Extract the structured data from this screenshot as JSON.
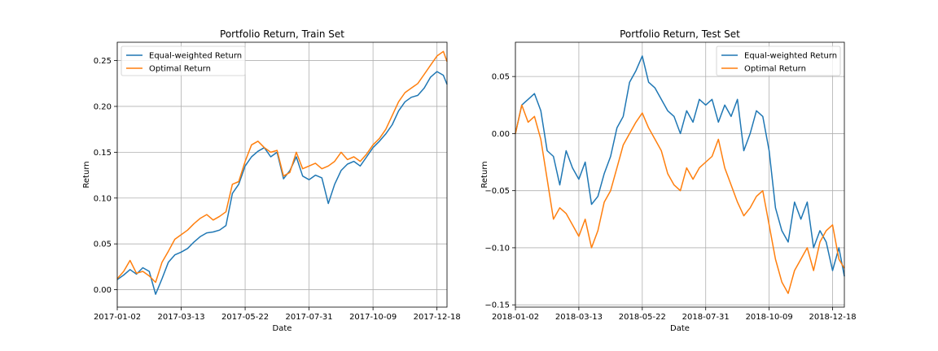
{
  "chart_data": [
    {
      "type": "line",
      "title": "Portfolio Return, Train Set",
      "xlabel": "Date",
      "ylabel": "Return",
      "xlim": [
        "2017-01-02",
        "2017-12-29"
      ],
      "ylim": [
        -0.019,
        0.27
      ],
      "x_ticks": [
        "2017-01-02",
        "2017-03-13",
        "2017-05-22",
        "2017-07-31",
        "2017-10-09",
        "2017-12-18"
      ],
      "y_ticks": [
        0.0,
        0.05,
        0.1,
        0.15,
        0.2,
        0.25
      ],
      "y_tick_labels": [
        "0.00",
        "0.05",
        "0.10",
        "0.15",
        "0.20",
        "0.25"
      ],
      "grid": true,
      "legend_position": "upper-left",
      "series": [
        {
          "name": "Equal-weighted Return",
          "color": "#1f77b4",
          "points": [
            [
              "2017-01-02",
              0.011
            ],
            [
              "2017-01-09",
              0.016
            ],
            [
              "2017-01-16",
              0.022
            ],
            [
              "2017-01-23",
              0.017
            ],
            [
              "2017-01-30",
              0.024
            ],
            [
              "2017-02-06",
              0.02
            ],
            [
              "2017-02-13",
              -0.005
            ],
            [
              "2017-02-20",
              0.012
            ],
            [
              "2017-02-27",
              0.03
            ],
            [
              "2017-03-06",
              0.038
            ],
            [
              "2017-03-13",
              0.041
            ],
            [
              "2017-03-20",
              0.045
            ],
            [
              "2017-03-27",
              0.052
            ],
            [
              "2017-04-03",
              0.058
            ],
            [
              "2017-04-10",
              0.062
            ],
            [
              "2017-04-17",
              0.063
            ],
            [
              "2017-04-24",
              0.065
            ],
            [
              "2017-05-01",
              0.07
            ],
            [
              "2017-05-08",
              0.105
            ],
            [
              "2017-05-15",
              0.115
            ],
            [
              "2017-05-22",
              0.135
            ],
            [
              "2017-05-29",
              0.145
            ],
            [
              "2017-06-05",
              0.151
            ],
            [
              "2017-06-12",
              0.155
            ],
            [
              "2017-06-19",
              0.145
            ],
            [
              "2017-06-26",
              0.15
            ],
            [
              "2017-07-03",
              0.121
            ],
            [
              "2017-07-10",
              0.13
            ],
            [
              "2017-07-17",
              0.145
            ],
            [
              "2017-07-24",
              0.124
            ],
            [
              "2017-07-31",
              0.12
            ],
            [
              "2017-08-07",
              0.125
            ],
            [
              "2017-08-14",
              0.122
            ],
            [
              "2017-08-21",
              0.094
            ],
            [
              "2017-08-28",
              0.115
            ],
            [
              "2017-09-04",
              0.13
            ],
            [
              "2017-09-11",
              0.137
            ],
            [
              "2017-09-18",
              0.14
            ],
            [
              "2017-09-25",
              0.135
            ],
            [
              "2017-10-02",
              0.145
            ],
            [
              "2017-10-09",
              0.155
            ],
            [
              "2017-10-16",
              0.162
            ],
            [
              "2017-10-23",
              0.17
            ],
            [
              "2017-10-30",
              0.18
            ],
            [
              "2017-11-06",
              0.195
            ],
            [
              "2017-11-13",
              0.205
            ],
            [
              "2017-11-20",
              0.21
            ],
            [
              "2017-11-27",
              0.212
            ],
            [
              "2017-12-04",
              0.22
            ],
            [
              "2017-12-11",
              0.232
            ],
            [
              "2017-12-18",
              0.238
            ],
            [
              "2017-12-25",
              0.234
            ],
            [
              "2017-12-29",
              0.224
            ]
          ]
        },
        {
          "name": "Optimal Return",
          "color": "#ff7f0e",
          "points": [
            [
              "2017-01-02",
              0.012
            ],
            [
              "2017-01-09",
              0.02
            ],
            [
              "2017-01-16",
              0.032
            ],
            [
              "2017-01-23",
              0.018
            ],
            [
              "2017-01-30",
              0.02
            ],
            [
              "2017-02-06",
              0.015
            ],
            [
              "2017-02-13",
              0.008
            ],
            [
              "2017-02-20",
              0.03
            ],
            [
              "2017-02-27",
              0.042
            ],
            [
              "2017-03-06",
              0.055
            ],
            [
              "2017-03-13",
              0.06
            ],
            [
              "2017-03-20",
              0.065
            ],
            [
              "2017-03-27",
              0.072
            ],
            [
              "2017-04-03",
              0.078
            ],
            [
              "2017-04-10",
              0.082
            ],
            [
              "2017-04-17",
              0.076
            ],
            [
              "2017-04-24",
              0.08
            ],
            [
              "2017-05-01",
              0.085
            ],
            [
              "2017-05-08",
              0.115
            ],
            [
              "2017-05-15",
              0.118
            ],
            [
              "2017-05-22",
              0.14
            ],
            [
              "2017-05-29",
              0.158
            ],
            [
              "2017-06-05",
              0.162
            ],
            [
              "2017-06-12",
              0.155
            ],
            [
              "2017-06-19",
              0.15
            ],
            [
              "2017-06-26",
              0.152
            ],
            [
              "2017-07-03",
              0.124
            ],
            [
              "2017-07-10",
              0.128
            ],
            [
              "2017-07-17",
              0.15
            ],
            [
              "2017-07-24",
              0.132
            ],
            [
              "2017-07-31",
              0.135
            ],
            [
              "2017-08-07",
              0.138
            ],
            [
              "2017-08-14",
              0.132
            ],
            [
              "2017-08-21",
              0.135
            ],
            [
              "2017-08-28",
              0.14
            ],
            [
              "2017-09-04",
              0.15
            ],
            [
              "2017-09-11",
              0.142
            ],
            [
              "2017-09-18",
              0.145
            ],
            [
              "2017-09-25",
              0.14
            ],
            [
              "2017-10-02",
              0.148
            ],
            [
              "2017-10-09",
              0.158
            ],
            [
              "2017-10-16",
              0.165
            ],
            [
              "2017-10-23",
              0.175
            ],
            [
              "2017-10-30",
              0.19
            ],
            [
              "2017-11-06",
              0.205
            ],
            [
              "2017-11-13",
              0.215
            ],
            [
              "2017-11-20",
              0.22
            ],
            [
              "2017-11-27",
              0.225
            ],
            [
              "2017-12-04",
              0.235
            ],
            [
              "2017-12-11",
              0.245
            ],
            [
              "2017-12-18",
              0.255
            ],
            [
              "2017-12-25",
              0.26
            ],
            [
              "2017-12-29",
              0.249
            ]
          ]
        }
      ]
    },
    {
      "type": "line",
      "title": "Portfolio Return, Test Set",
      "xlabel": "Date",
      "ylabel": "Return",
      "xlim": [
        "2018-01-02",
        "2018-12-31"
      ],
      "ylim": [
        -0.152,
        0.08
      ],
      "x_ticks": [
        "2018-01-02",
        "2018-03-13",
        "2018-05-22",
        "2018-07-31",
        "2018-10-09",
        "2018-12-18"
      ],
      "y_ticks": [
        0.05,
        0.0,
        -0.05,
        -0.1,
        -0.15
      ],
      "y_tick_labels": [
        "0.05",
        "0.00",
        "−0.05",
        "−0.10",
        "−0.15"
      ],
      "grid": true,
      "legend_position": "upper-right",
      "series": [
        {
          "name": "Equal-weighted Return",
          "color": "#1f77b4",
          "points": [
            [
              "2018-01-02",
              0.0
            ],
            [
              "2018-01-09",
              0.025
            ],
            [
              "2018-01-16",
              0.03
            ],
            [
              "2018-01-23",
              0.035
            ],
            [
              "2018-01-30",
              0.02
            ],
            [
              "2018-02-06",
              -0.015
            ],
            [
              "2018-02-13",
              -0.02
            ],
            [
              "2018-02-20",
              -0.045
            ],
            [
              "2018-02-27",
              -0.015
            ],
            [
              "2018-03-06",
              -0.03
            ],
            [
              "2018-03-13",
              -0.04
            ],
            [
              "2018-03-20",
              -0.025
            ],
            [
              "2018-03-27",
              -0.062
            ],
            [
              "2018-04-03",
              -0.055
            ],
            [
              "2018-04-10",
              -0.035
            ],
            [
              "2018-04-17",
              -0.02
            ],
            [
              "2018-04-24",
              0.005
            ],
            [
              "2018-05-01",
              0.015
            ],
            [
              "2018-05-08",
              0.045
            ],
            [
              "2018-05-15",
              0.055
            ],
            [
              "2018-05-22",
              0.068
            ],
            [
              "2018-05-29",
              0.045
            ],
            [
              "2018-06-05",
              0.04
            ],
            [
              "2018-06-12",
              0.03
            ],
            [
              "2018-06-19",
              0.02
            ],
            [
              "2018-06-26",
              0.015
            ],
            [
              "2018-07-03",
              0.0
            ],
            [
              "2018-07-10",
              0.02
            ],
            [
              "2018-07-17",
              0.01
            ],
            [
              "2018-07-24",
              0.03
            ],
            [
              "2018-07-31",
              0.025
            ],
            [
              "2018-08-07",
              0.03
            ],
            [
              "2018-08-14",
              0.01
            ],
            [
              "2018-08-21",
              0.025
            ],
            [
              "2018-08-28",
              0.015
            ],
            [
              "2018-09-04",
              0.03
            ],
            [
              "2018-09-11",
              -0.015
            ],
            [
              "2018-09-18",
              0.0
            ],
            [
              "2018-09-25",
              0.02
            ],
            [
              "2018-10-02",
              0.015
            ],
            [
              "2018-10-09",
              -0.015
            ],
            [
              "2018-10-16",
              -0.065
            ],
            [
              "2018-10-23",
              -0.085
            ],
            [
              "2018-10-30",
              -0.095
            ],
            [
              "2018-11-06",
              -0.06
            ],
            [
              "2018-11-13",
              -0.075
            ],
            [
              "2018-11-20",
              -0.06
            ],
            [
              "2018-11-27",
              -0.1
            ],
            [
              "2018-12-04",
              -0.085
            ],
            [
              "2018-12-11",
              -0.095
            ],
            [
              "2018-12-18",
              -0.12
            ],
            [
              "2018-12-25",
              -0.1
            ],
            [
              "2018-12-31",
              -0.125
            ]
          ]
        },
        {
          "name": "Optimal Return",
          "color": "#ff7f0e",
          "points": [
            [
              "2018-01-02",
              0.0
            ],
            [
              "2018-01-09",
              0.025
            ],
            [
              "2018-01-16",
              0.01
            ],
            [
              "2018-01-23",
              0.015
            ],
            [
              "2018-01-30",
              -0.005
            ],
            [
              "2018-02-06",
              -0.04
            ],
            [
              "2018-02-13",
              -0.075
            ],
            [
              "2018-02-20",
              -0.065
            ],
            [
              "2018-02-27",
              -0.07
            ],
            [
              "2018-03-06",
              -0.08
            ],
            [
              "2018-03-13",
              -0.09
            ],
            [
              "2018-03-20",
              -0.075
            ],
            [
              "2018-03-27",
              -0.1
            ],
            [
              "2018-04-03",
              -0.085
            ],
            [
              "2018-04-10",
              -0.06
            ],
            [
              "2018-04-17",
              -0.05
            ],
            [
              "2018-04-24",
              -0.03
            ],
            [
              "2018-05-01",
              -0.01
            ],
            [
              "2018-05-08",
              0.0
            ],
            [
              "2018-05-15",
              0.01
            ],
            [
              "2018-05-22",
              0.018
            ],
            [
              "2018-05-29",
              0.005
            ],
            [
              "2018-06-05",
              -0.005
            ],
            [
              "2018-06-12",
              -0.015
            ],
            [
              "2018-06-19",
              -0.035
            ],
            [
              "2018-06-26",
              -0.045
            ],
            [
              "2018-07-03",
              -0.05
            ],
            [
              "2018-07-10",
              -0.03
            ],
            [
              "2018-07-17",
              -0.04
            ],
            [
              "2018-07-24",
              -0.03
            ],
            [
              "2018-07-31",
              -0.025
            ],
            [
              "2018-08-07",
              -0.02
            ],
            [
              "2018-08-14",
              -0.005
            ],
            [
              "2018-08-21",
              -0.03
            ],
            [
              "2018-08-28",
              -0.045
            ],
            [
              "2018-09-04",
              -0.06
            ],
            [
              "2018-09-11",
              -0.072
            ],
            [
              "2018-09-18",
              -0.065
            ],
            [
              "2018-09-25",
              -0.055
            ],
            [
              "2018-10-02",
              -0.05
            ],
            [
              "2018-10-09",
              -0.08
            ],
            [
              "2018-10-16",
              -0.11
            ],
            [
              "2018-10-23",
              -0.13
            ],
            [
              "2018-10-30",
              -0.14
            ],
            [
              "2018-11-06",
              -0.12
            ],
            [
              "2018-11-13",
              -0.11
            ],
            [
              "2018-11-20",
              -0.1
            ],
            [
              "2018-11-27",
              -0.12
            ],
            [
              "2018-12-04",
              -0.095
            ],
            [
              "2018-12-11",
              -0.085
            ],
            [
              "2018-12-18",
              -0.08
            ],
            [
              "2018-12-25",
              -0.11
            ],
            [
              "2018-12-31",
              -0.118
            ]
          ]
        }
      ]
    }
  ]
}
